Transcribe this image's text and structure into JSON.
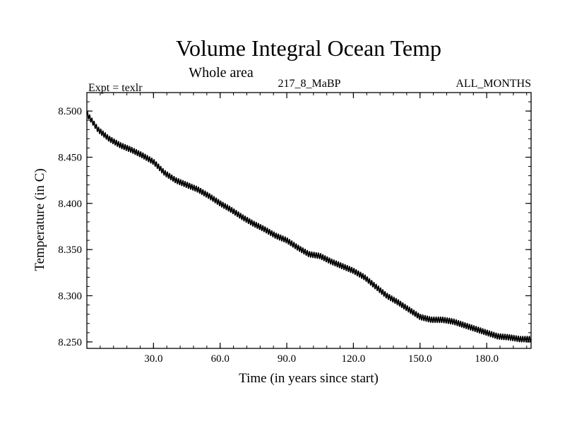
{
  "chart_data": {
    "type": "line",
    "title": "Volume Integral Ocean Temp",
    "subtitle": "Whole area",
    "expt_label": "Expt = texlr",
    "run_label": "217_8_MaBP",
    "months_label": "ALL_MONTHS",
    "xlabel": "Time (in years since start)",
    "ylabel": "Temperature (in C)",
    "xlim": [
      0,
      200
    ],
    "ylim": [
      8.243,
      8.52
    ],
    "x_ticks": [
      30,
      60,
      90,
      120,
      150,
      180
    ],
    "x_tick_labels": [
      "30.0",
      "60.0",
      "90.0",
      "120.0",
      "150.0",
      "180.0"
    ],
    "y_ticks": [
      8.25,
      8.3,
      8.35,
      8.4,
      8.45,
      8.5
    ],
    "y_tick_labels": [
      "8.250",
      "8.300",
      "8.350",
      "8.400",
      "8.450",
      "8.500"
    ],
    "series": [
      {
        "name": "volume integral ocean temp",
        "seasonal_amplitude": 0.003,
        "x": [
          0,
          5,
          10,
          15,
          20,
          25,
          30,
          35,
          40,
          45,
          50,
          55,
          60,
          65,
          70,
          75,
          80,
          85,
          90,
          95,
          100,
          105,
          110,
          115,
          120,
          125,
          130,
          135,
          140,
          145,
          150,
          155,
          160,
          165,
          170,
          175,
          180,
          185,
          190,
          195,
          200
        ],
        "values": [
          8.497,
          8.48,
          8.47,
          8.463,
          8.458,
          8.452,
          8.445,
          8.433,
          8.425,
          8.42,
          8.415,
          8.408,
          8.4,
          8.393,
          8.385,
          8.378,
          8.372,
          8.365,
          8.36,
          8.352,
          8.345,
          8.343,
          8.337,
          8.332,
          8.327,
          8.32,
          8.31,
          8.3,
          8.293,
          8.285,
          8.277,
          8.274,
          8.274,
          8.272,
          8.268,
          8.264,
          8.26,
          8.256,
          8.255,
          8.253,
          8.253
        ]
      }
    ]
  }
}
